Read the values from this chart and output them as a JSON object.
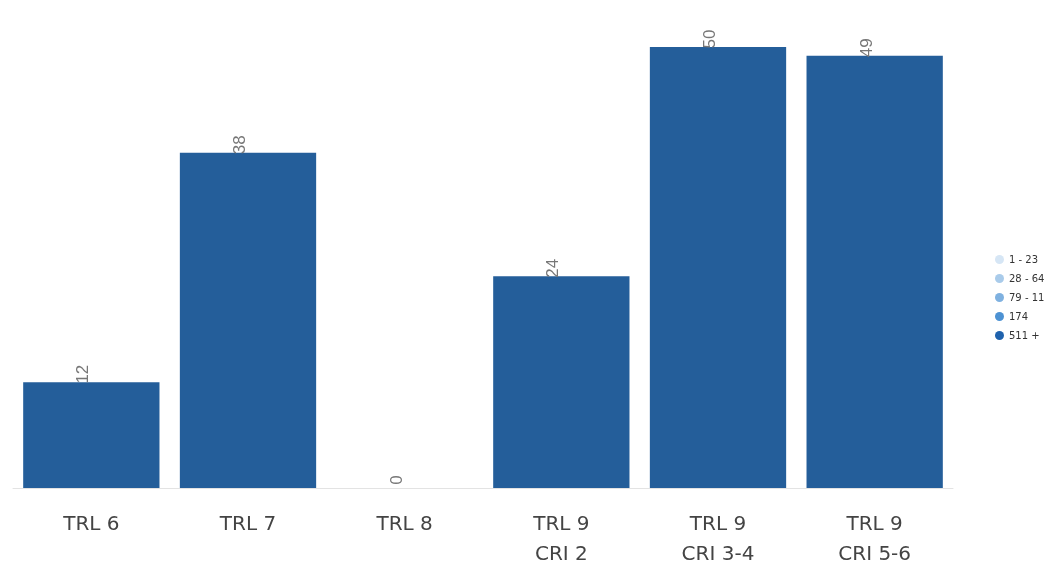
{
  "chart_data": {
    "type": "bar",
    "categories": [
      "TRL 6",
      "TRL 7",
      "TRL 8",
      "TRL 9\nCRI 2",
      "TRL 9\nCRI 3-4",
      "TRL 9\nCRI 5-6"
    ],
    "values": [
      12,
      38,
      0,
      24,
      50,
      49
    ],
    "color": "#245e9a",
    "data_labels": true,
    "annotations": [
      "1 - 23",
      "28 - 64",
      "79 - 11",
      "174",
      "511 +"
    ]
  }
}
